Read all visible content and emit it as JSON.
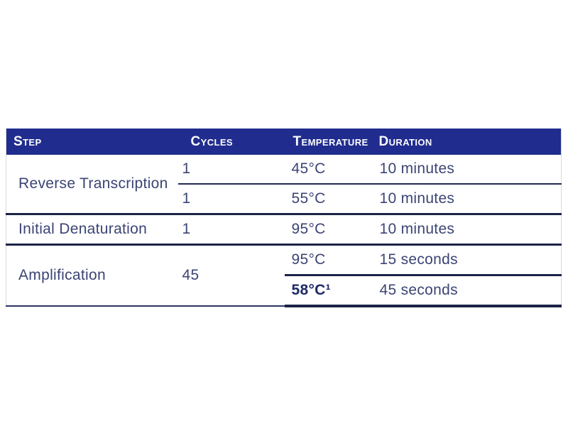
{
  "table": {
    "headers": [
      "Step",
      "Cycles",
      "Temperature",
      "Duration"
    ],
    "groups": [
      {
        "step": "Reverse Transcription",
        "rows": [
          {
            "cycles": "1",
            "temperature": "45°C",
            "duration": "10 minutes"
          },
          {
            "cycles": "1",
            "temperature": "55°C",
            "duration": "10 minutes"
          }
        ]
      },
      {
        "step": "Initial Denaturation",
        "rows": [
          {
            "cycles": "1",
            "temperature": "95°C",
            "duration": "10 minutes"
          }
        ]
      },
      {
        "step": "Amplification",
        "cycles": "45",
        "rows": [
          {
            "temperature": "95°C",
            "duration": "15 seconds"
          },
          {
            "temperature": "58°C¹",
            "duration": "45 seconds"
          }
        ]
      }
    ]
  },
  "colors": {
    "header_bg": "#202d8e",
    "header_text": "#ffffff",
    "body_text": "#3b4474",
    "bold_temp_text": "#1e2a66",
    "rule": "#1c2348",
    "outer_border": "#d9d9d9"
  }
}
